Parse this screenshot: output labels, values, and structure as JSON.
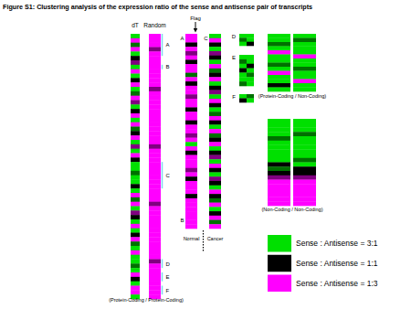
{
  "chart_data": {
    "type": "heatmap",
    "title": "Figure S1: Clustering analysis of the expression ratio of the sense and antisense pair of transcripts",
    "color_key": [
      {
        "value": 1,
        "label": "Sense : Antisense = 3:1",
        "color": "#00e000"
      },
      {
        "value": 0,
        "label": "Sense : Antisense = 1:1",
        "color": "#000000"
      },
      {
        "value": -1,
        "label": "Sense : Antisense = 1:3",
        "color": "#ff00ff"
      }
    ],
    "panels": [
      {
        "caption": "(Protein-Coding / Protein-Coding)",
        "columns": [
          {
            "name": "dT",
            "cells": [
              1,
              -1,
              0.5,
              -1,
              1,
              0,
              -0.5,
              1,
              -1,
              1,
              0,
              -1,
              1,
              0.5,
              -1,
              -0.5,
              1,
              0,
              -1,
              1,
              -1,
              0.5,
              0,
              -1,
              1,
              -0.5,
              1,
              -1,
              0,
              1,
              1,
              0.5,
              1,
              1,
              0,
              1,
              -1,
              0.5,
              -1,
              1,
              -0.5,
              0,
              1,
              -1,
              1,
              0,
              -1,
              0.5,
              1,
              -1,
              1,
              1,
              0.5,
              1,
              -1,
              0,
              1,
              -1,
              -1,
              1
            ]
          },
          {
            "name": "Random",
            "cells": [
              -1,
              -1,
              -1,
              -0.5,
              -1,
              -1,
              -1,
              -1,
              -1,
              -1,
              -1,
              -1,
              -0.5,
              -1,
              -1,
              -1,
              -1,
              -1,
              -1,
              -1,
              -1,
              -1,
              -1,
              -1,
              -1,
              -0.5,
              -1,
              -1,
              -1,
              -1,
              -1,
              -1,
              -1,
              -1,
              -1,
              -1,
              -1,
              -1,
              -0.5,
              -1,
              -1,
              -1,
              -1,
              -1,
              -1,
              -1,
              -1,
              -1,
              -1,
              -1,
              -1,
              -0.5,
              -1,
              -1,
              -1,
              -1,
              -1,
              -1,
              -1,
              -1
            ]
          }
        ],
        "clusters": [
          {
            "label": "A",
            "column": 1,
            "rows": [
              0,
              4
            ]
          },
          {
            "label": "B",
            "column": 1,
            "rows": [
              7,
              7
            ]
          },
          {
            "label": "C",
            "column": 1,
            "rows": [
              29,
              34
            ]
          },
          {
            "label": "D",
            "column": 1,
            "rows": [
              51,
              52
            ]
          },
          {
            "label": "E",
            "column": 1,
            "rows": [
              54,
              55
            ]
          },
          {
            "label": "F",
            "column": 1,
            "rows": [
              57,
              58
            ]
          }
        ]
      },
      {
        "annotation": "Flag",
        "columns": [
          {
            "name": "Normal",
            "cells": [
              -1,
              -1,
              0,
              -1,
              -0.5,
              -1,
              0,
              -1,
              -1,
              0.5,
              -1,
              0,
              -1,
              -1,
              -0.5,
              -1,
              -1,
              0,
              -1,
              -1,
              0,
              -1,
              -1,
              -0.5,
              -1,
              1,
              -1,
              0,
              -1,
              -1,
              -1,
              -0.5,
              -1,
              0,
              -1,
              -1,
              -1,
              0,
              -1,
              -1,
              -1,
              -1,
              -1,
              -1,
              -1
            ]
          },
          {
            "name": "Cancer",
            "cells": [
              1,
              -1,
              0,
              1,
              -0.5,
              0,
              1,
              -1,
              0.5,
              0,
              -1,
              1,
              0,
              -0.5,
              1,
              -1,
              0,
              1,
              0.5,
              -1,
              0,
              1,
              -1,
              0.5,
              0,
              -1,
              1,
              0,
              -0.5,
              1,
              -1,
              0,
              1,
              -0.5,
              0,
              1,
              -1,
              0,
              0.5,
              -1,
              1,
              0,
              -1,
              0.5,
              -1
            ]
          }
        ],
        "clusters": [
          {
            "label": "A",
            "column": 0,
            "rows": [
              0,
              1
            ]
          },
          {
            "label": "B",
            "column": 0,
            "rows": [
              41,
              44
            ]
          },
          {
            "label": "C",
            "column": 1,
            "rows": [
              0,
              1
            ]
          }
        ]
      },
      {
        "label": "D",
        "columns": [
          {
            "cells": [
              1,
              0.5,
              1
            ]
          },
          {
            "cells": [
              1,
              1,
              0
            ]
          }
        ]
      },
      {
        "label": "E",
        "columns": [
          {
            "cells": [
              1,
              0.5,
              1,
              0,
              1,
              1,
              0.5
            ]
          },
          {
            "cells": [
              1,
              1,
              0,
              1,
              0.5,
              1,
              1
            ]
          }
        ]
      },
      {
        "label": "F",
        "columns": [
          {
            "cells": [
              1,
              0
            ]
          },
          {
            "cells": [
              0.5,
              1
            ]
          }
        ]
      },
      {
        "caption": "(Protein-Coding / Non-Coding)",
        "columns": [
          {
            "cells": [
              1,
              1,
              0.5,
              1,
              -1,
              1,
              1,
              0.5,
              1,
              -1,
              1,
              1,
              0,
              1
            ]
          },
          {
            "cells": [
              1,
              0.5,
              1,
              1,
              1,
              -1,
              1,
              1,
              0.5,
              1,
              1,
              -1,
              1,
              1
            ]
          }
        ]
      },
      {
        "caption": "(Non-Coding / Non-Coding)",
        "columns": [
          {
            "cells": [
              1,
              1,
              1,
              1,
              0.5,
              1,
              1,
              1,
              1,
              1,
              0,
              0.5,
              0,
              -0.5,
              -1,
              -1,
              -1,
              -1,
              -1,
              -1
            ]
          },
          {
            "cells": [
              1,
              1,
              1,
              0.5,
              1,
              1,
              1,
              1,
              1,
              0.5,
              1,
              0,
              0,
              -0.5,
              -1,
              -1,
              -1,
              -1,
              -1,
              -1
            ]
          }
        ]
      }
    ]
  }
}
